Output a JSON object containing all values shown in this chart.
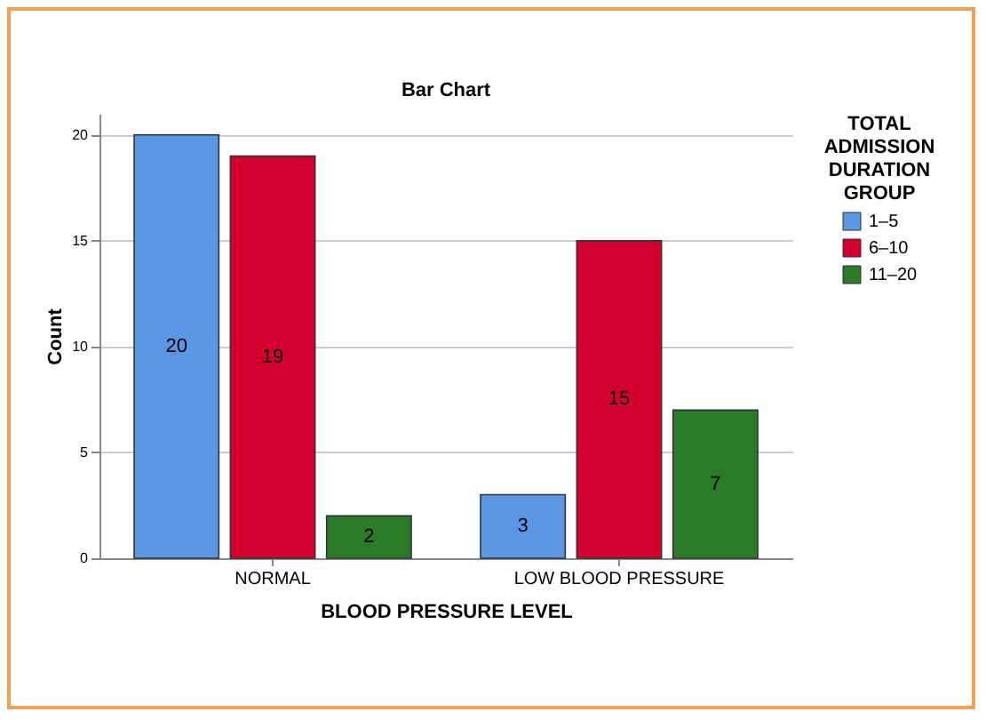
{
  "chart_data": {
    "type": "bar",
    "title": "Bar Chart",
    "xlabel": "BLOOD PRESSURE LEVEL",
    "ylabel": "Count",
    "legend_title": "TOTAL ADMISSION DURATION GROUP",
    "categories": [
      "NORMAL",
      "LOW BLOOD PRESSURE"
    ],
    "series": [
      {
        "name": "1–5",
        "color": "#5b96e3",
        "values": [
          20,
          3
        ]
      },
      {
        "name": "6–10",
        "color": "#d3002d",
        "values": [
          19,
          15
        ]
      },
      {
        "name": "11–20",
        "color": "#2a7b27",
        "values": [
          2,
          7
        ]
      }
    ],
    "ylim": [
      0,
      21
    ],
    "yticks": [
      0,
      5,
      10,
      15,
      20
    ],
    "grid": "y",
    "legend": "top right",
    "data_labels": true
  }
}
